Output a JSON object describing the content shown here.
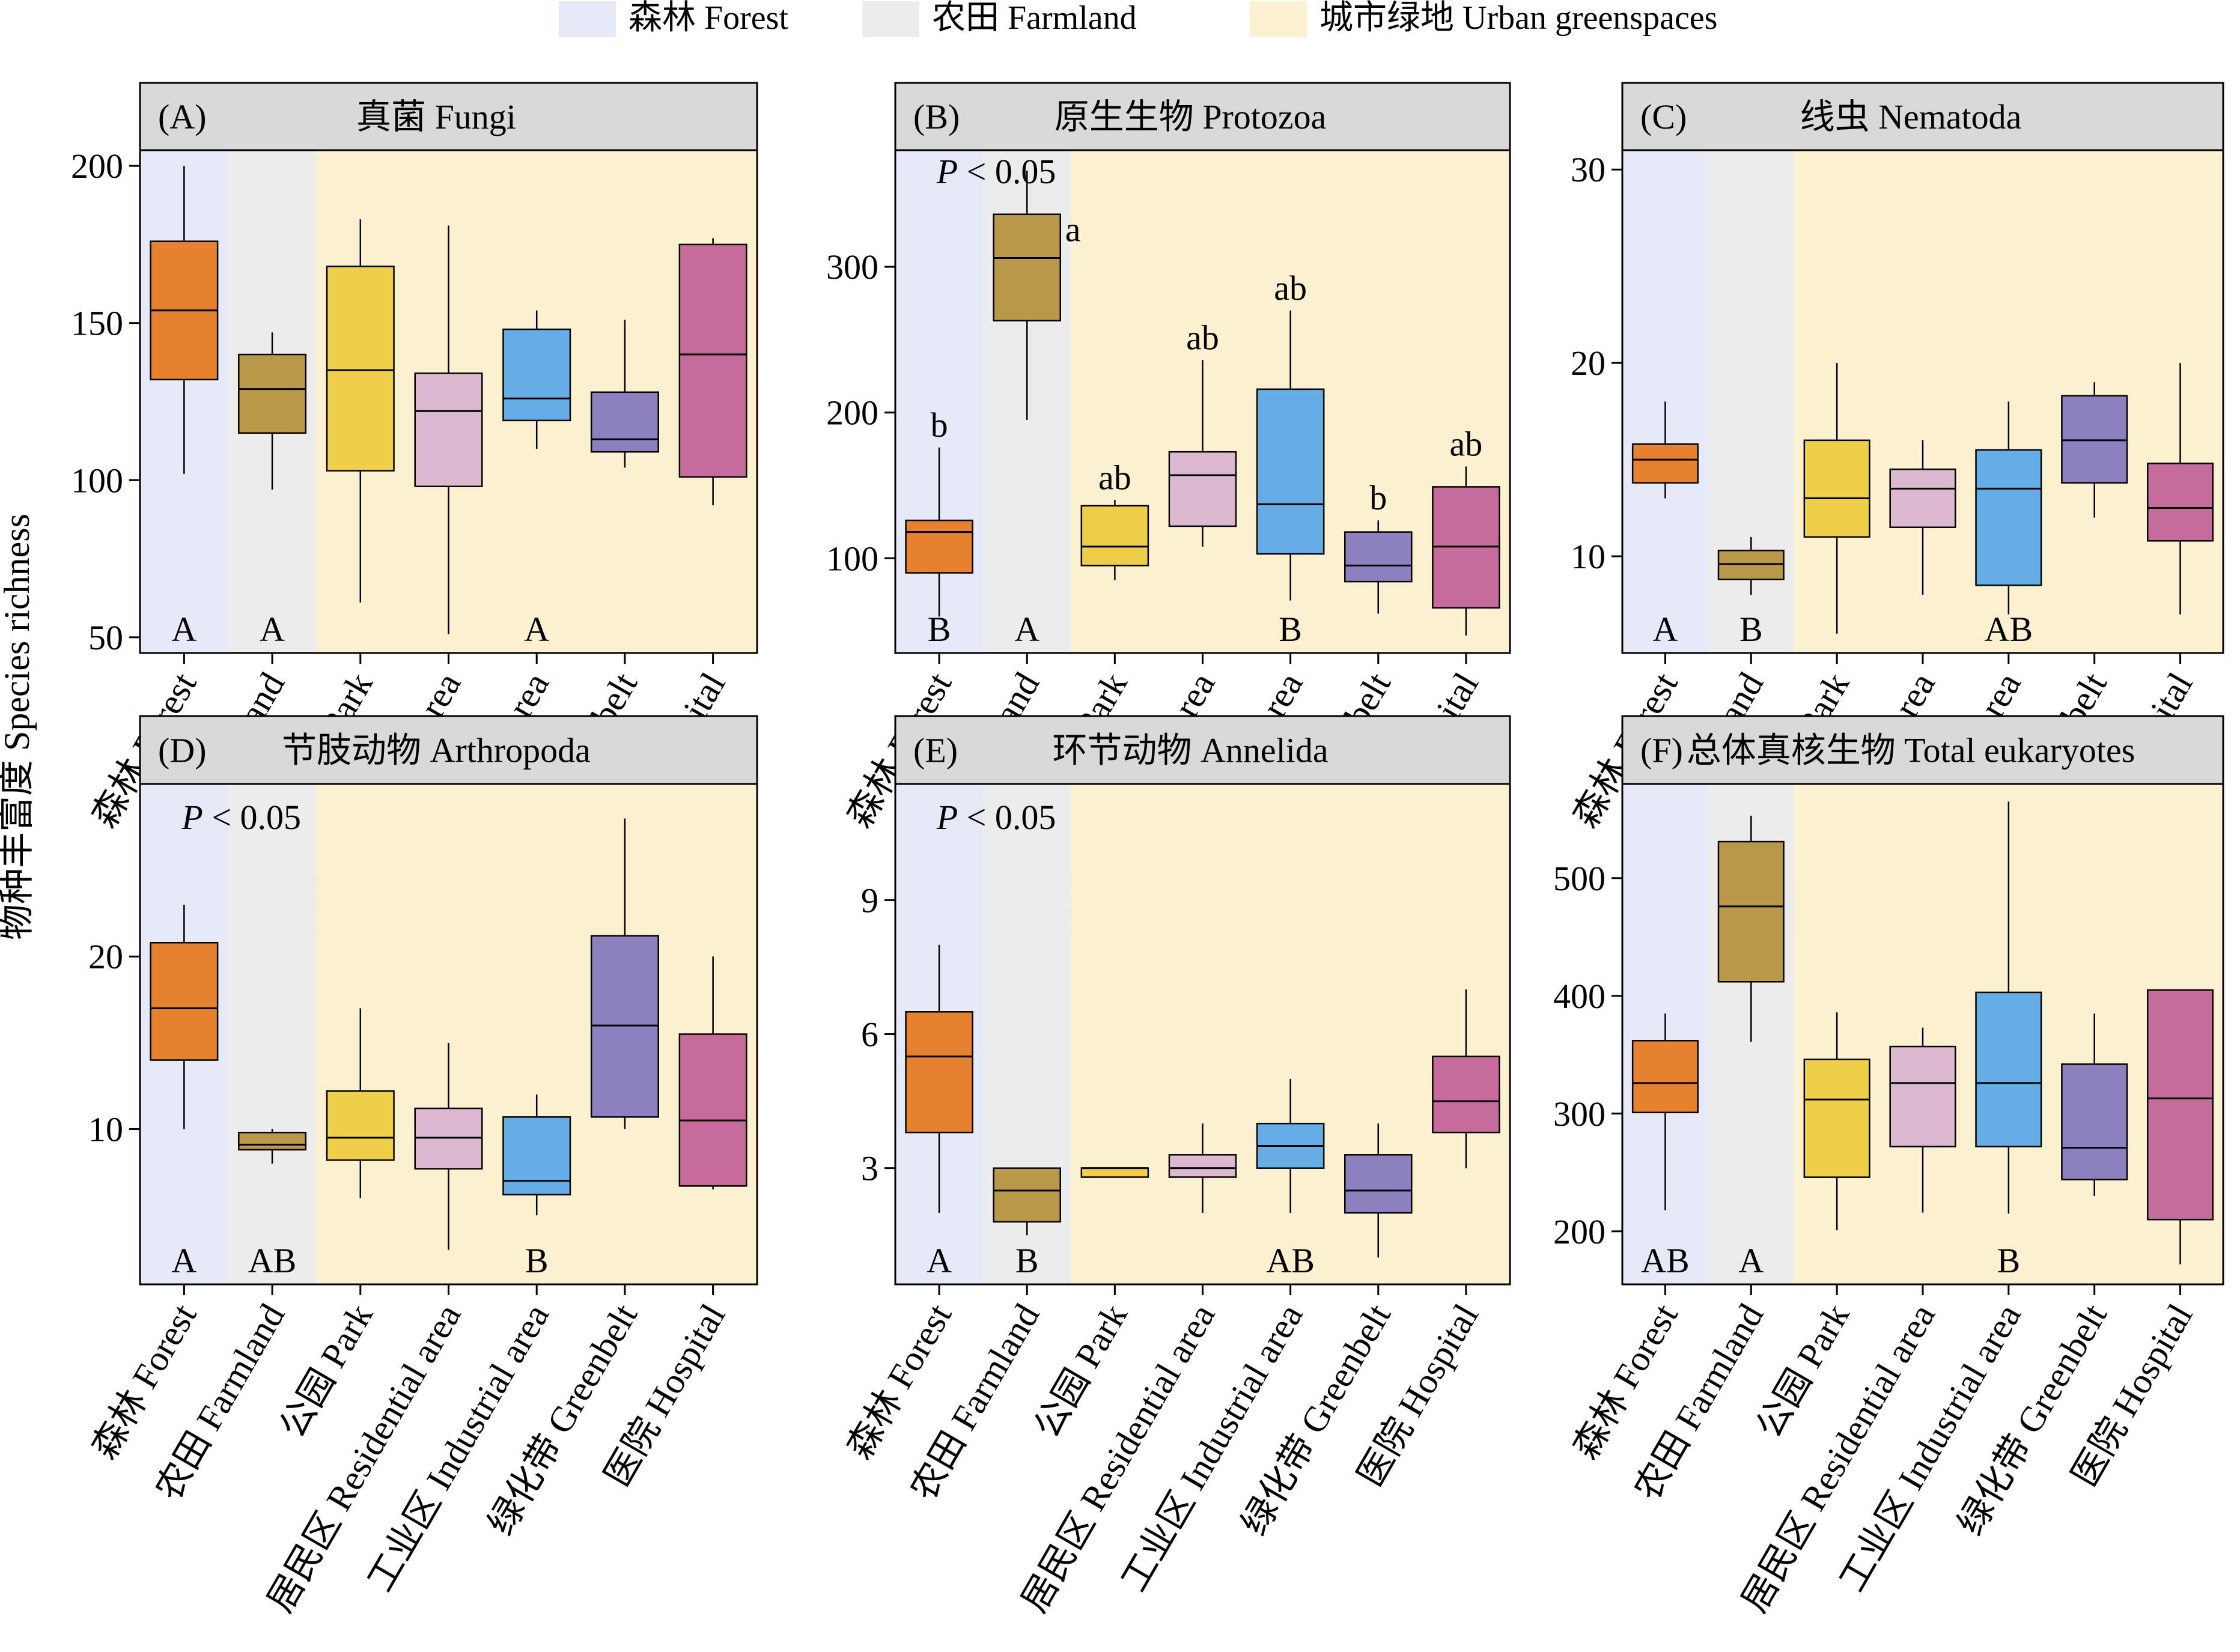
{
  "legend": [
    {
      "label": "森林 Forest",
      "color": "#e6e9f7"
    },
    {
      "label": "农田 Farmland",
      "color": "#ececec"
    },
    {
      "label": "城市绿地 Urban greenspaces",
      "color": "#fbf0cf"
    }
  ],
  "y_axis_label": "物种丰富度 Species richness",
  "category_colors": [
    "#e6822f",
    "#b9984a",
    "#efcf4a",
    "#dcb9d0",
    "#64ade5",
    "#8c80bf",
    "#c66c9c"
  ],
  "chart_data": [
    {
      "type": "box",
      "panel": "(A)",
      "title": "真菌 Fungi",
      "categories": [
        "森林 Forest",
        "农田 Farmland",
        "公园 Park",
        "居民区 Residential area",
        "工业区 Industrial area",
        "绿化带 Greenbelt",
        "医院 Hospital"
      ],
      "ylim": [
        45,
        205
      ],
      "yticks": [
        50,
        100,
        150,
        200
      ],
      "p_value": "",
      "boxes": [
        {
          "min": 102,
          "q1": 132,
          "median": 154,
          "q3": 176,
          "max": 200,
          "label": ""
        },
        {
          "min": 97,
          "q1": 115,
          "median": 129,
          "q3": 140,
          "max": 147,
          "label": ""
        },
        {
          "min": 61,
          "q1": 103,
          "median": 135,
          "q3": 168,
          "max": 183,
          "label": ""
        },
        {
          "min": 51,
          "q1": 98,
          "median": 122,
          "q3": 134,
          "max": 181,
          "label": ""
        },
        {
          "min": 110,
          "q1": 119,
          "median": 126,
          "q3": 148,
          "max": 154,
          "label": ""
        },
        {
          "min": 104,
          "q1": 109,
          "median": 113,
          "q3": 128,
          "max": 151,
          "label": ""
        },
        {
          "min": 92,
          "q1": 101,
          "median": 140,
          "q3": 175,
          "max": 177,
          "label": ""
        }
      ],
      "group_labels": [
        {
          "text": "A",
          "pos": 0
        },
        {
          "text": "A",
          "pos": 1
        },
        {
          "text": "A",
          "pos": 4
        }
      ]
    },
    {
      "type": "box",
      "panel": "(B)",
      "title": "原生生物 Protozoa",
      "categories": [
        "森林 Forest",
        "农田 Farmland",
        "公园 Park",
        "居民区 Residential area",
        "工业区 Industrial area",
        "绿化带 Greenbelt",
        "医院 Hospital"
      ],
      "ylim": [
        35,
        380
      ],
      "yticks": [
        100,
        200,
        300
      ],
      "p_value": "P < 0.05",
      "boxes": [
        {
          "min": 60,
          "q1": 90,
          "median": 118,
          "q3": 126,
          "max": 176,
          "label": "b"
        },
        {
          "min": 195,
          "q1": 263,
          "median": 306,
          "q3": 336,
          "max": 366,
          "label": "a"
        },
        {
          "min": 85,
          "q1": 95,
          "median": 108,
          "q3": 136,
          "max": 140,
          "label": "ab"
        },
        {
          "min": 108,
          "q1": 122,
          "median": 157,
          "q3": 173,
          "max": 236,
          "label": "ab"
        },
        {
          "min": 71,
          "q1": 103,
          "median": 137,
          "q3": 216,
          "max": 270,
          "label": "ab"
        },
        {
          "min": 62,
          "q1": 84,
          "median": 95,
          "q3": 118,
          "max": 126,
          "label": "b"
        },
        {
          "min": 47,
          "q1": 66,
          "median": 108,
          "q3": 149,
          "max": 163,
          "label": "ab"
        }
      ],
      "group_labels": [
        {
          "text": "B",
          "pos": 0
        },
        {
          "text": "A",
          "pos": 1
        },
        {
          "text": "B",
          "pos": 4
        }
      ]
    },
    {
      "type": "box",
      "panel": "(C)",
      "title": "线虫 Nematoda",
      "categories": [
        "森林 Forest",
        "农田 Farmland",
        "公园 Park",
        "居民区 Residential area",
        "工业区 Industrial area",
        "绿化带 Greenbelt",
        "医院 Hospital"
      ],
      "ylim": [
        5,
        31
      ],
      "yticks": [
        10,
        20,
        30
      ],
      "p_value": "",
      "boxes": [
        {
          "min": 13,
          "q1": 13.8,
          "median": 15,
          "q3": 15.8,
          "max": 18,
          "label": ""
        },
        {
          "min": 8,
          "q1": 8.8,
          "median": 9.6,
          "q3": 10.3,
          "max": 11,
          "label": ""
        },
        {
          "min": 6,
          "q1": 11,
          "median": 13,
          "q3": 16,
          "max": 20,
          "label": ""
        },
        {
          "min": 8,
          "q1": 11.5,
          "median": 13.5,
          "q3": 14.5,
          "max": 16,
          "label": ""
        },
        {
          "min": 7,
          "q1": 8.5,
          "median": 13.5,
          "q3": 15.5,
          "max": 18,
          "label": ""
        },
        {
          "min": 12,
          "q1": 13.8,
          "median": 16,
          "q3": 18.3,
          "max": 19,
          "label": ""
        },
        {
          "min": 7,
          "q1": 10.8,
          "median": 12.5,
          "q3": 14.8,
          "max": 20,
          "label": ""
        }
      ],
      "group_labels": [
        {
          "text": "A",
          "pos": 0
        },
        {
          "text": "B",
          "pos": 1
        },
        {
          "text": "AB",
          "pos": 4
        }
      ]
    },
    {
      "type": "box",
      "panel": "(D)",
      "title": "节肢动物 Arthropoda",
      "categories": [
        "森林 Forest",
        "农田 Farmland",
        "公园 Park",
        "居民区 Residential area",
        "工业区 Industrial area",
        "绿化带 Greenbelt",
        "医院 Hospital"
      ],
      "ylim": [
        1,
        30
      ],
      "yticks": [
        10,
        20
      ],
      "p_value": "P < 0.05",
      "boxes": [
        {
          "min": 10,
          "q1": 14,
          "median": 17,
          "q3": 20.8,
          "max": 23,
          "label": ""
        },
        {
          "min": 8,
          "q1": 8.8,
          "median": 9.1,
          "q3": 9.8,
          "max": 10,
          "label": ""
        },
        {
          "min": 6,
          "q1": 8.2,
          "median": 9.5,
          "q3": 12.2,
          "max": 17,
          "label": ""
        },
        {
          "min": 3,
          "q1": 7.7,
          "median": 9.5,
          "q3": 11.2,
          "max": 15,
          "label": ""
        },
        {
          "min": 5,
          "q1": 6.2,
          "median": 7,
          "q3": 10.7,
          "max": 12,
          "label": ""
        },
        {
          "min": 10,
          "q1": 10.7,
          "median": 16,
          "q3": 21.2,
          "max": 28,
          "label": ""
        },
        {
          "min": 6.5,
          "q1": 6.7,
          "median": 10.5,
          "q3": 15.5,
          "max": 20,
          "label": ""
        }
      ],
      "group_labels": [
        {
          "text": "A",
          "pos": 0
        },
        {
          "text": "AB",
          "pos": 1
        },
        {
          "text": "B",
          "pos": 4
        }
      ]
    },
    {
      "type": "box",
      "panel": "(E)",
      "title": "环节动物 Annelida",
      "categories": [
        "森林 Forest",
        "农田 Farmland",
        "公园 Park",
        "居民区 Residential area",
        "工业区 Industrial area",
        "绿化带 Greenbelt",
        "医院 Hospital"
      ],
      "ylim": [
        0.4,
        11.6
      ],
      "yticks": [
        3,
        6,
        9
      ],
      "p_value": "P < 0.05",
      "boxes": [
        {
          "min": 2,
          "q1": 3.8,
          "median": 5.5,
          "q3": 6.5,
          "max": 8,
          "label": ""
        },
        {
          "min": 1.5,
          "q1": 1.8,
          "median": 2.5,
          "q3": 3,
          "max": 3,
          "label": ""
        },
        {
          "min": 2.8,
          "q1": 2.8,
          "median": 3,
          "q3": 3,
          "max": 3,
          "label": ""
        },
        {
          "min": 2,
          "q1": 2.8,
          "median": 3,
          "q3": 3.3,
          "max": 4,
          "label": ""
        },
        {
          "min": 2,
          "q1": 3,
          "median": 3.5,
          "q3": 4,
          "max": 5,
          "label": ""
        },
        {
          "min": 1,
          "q1": 2,
          "median": 2.5,
          "q3": 3.3,
          "max": 4,
          "label": ""
        },
        {
          "min": 3,
          "q1": 3.8,
          "median": 4.5,
          "q3": 5.5,
          "max": 7,
          "label": ""
        }
      ],
      "group_labels": [
        {
          "text": "A",
          "pos": 0
        },
        {
          "text": "B",
          "pos": 1
        },
        {
          "text": "AB",
          "pos": 4
        }
      ]
    },
    {
      "type": "box",
      "panel": "(F)",
      "title": "总体真核生物 Total eukaryotes",
      "categories": [
        "森林 Forest",
        "农田 Farmland",
        "公园 Park",
        "居民区 Residential area",
        "工业区 Industrial area",
        "绿化带 Greenbelt",
        "医院 Hospital"
      ],
      "ylim": [
        155,
        580
      ],
      "yticks": [
        200,
        300,
        400,
        500
      ],
      "p_value": "",
      "boxes": [
        {
          "min": 218,
          "q1": 301,
          "median": 326,
          "q3": 362,
          "max": 385,
          "label": ""
        },
        {
          "min": 361,
          "q1": 412,
          "median": 476,
          "q3": 531,
          "max": 553,
          "label": ""
        },
        {
          "min": 201,
          "q1": 246,
          "median": 312,
          "q3": 346,
          "max": 386,
          "label": ""
        },
        {
          "min": 216,
          "q1": 272,
          "median": 326,
          "q3": 357,
          "max": 373,
          "label": ""
        },
        {
          "min": 215,
          "q1": 272,
          "median": 326,
          "q3": 403,
          "max": 565,
          "label": ""
        },
        {
          "min": 230,
          "q1": 244,
          "median": 271,
          "q3": 342,
          "max": 385,
          "label": ""
        },
        {
          "min": 172,
          "q1": 210,
          "median": 313,
          "q3": 405,
          "max": 405,
          "label": ""
        }
      ],
      "group_labels": [
        {
          "text": "AB",
          "pos": 0
        },
        {
          "text": "A",
          "pos": 1
        },
        {
          "text": "B",
          "pos": 4
        }
      ]
    }
  ]
}
